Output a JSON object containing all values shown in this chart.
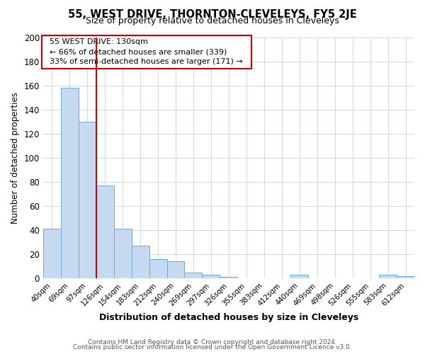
{
  "title": "55, WEST DRIVE, THORNTON-CLEVELEYS, FY5 2JE",
  "subtitle": "Size of property relative to detached houses in Cleveleys",
  "xlabel": "Distribution of detached houses by size in Cleveleys",
  "ylabel": "Number of detached properties",
  "bar_labels": [
    "40sqm",
    "69sqm",
    "97sqm",
    "126sqm",
    "154sqm",
    "183sqm",
    "212sqm",
    "240sqm",
    "269sqm",
    "297sqm",
    "326sqm",
    "355sqm",
    "383sqm",
    "412sqm",
    "440sqm",
    "469sqm",
    "498sqm",
    "526sqm",
    "555sqm",
    "583sqm",
    "612sqm"
  ],
  "bar_values": [
    41,
    158,
    130,
    77,
    41,
    27,
    16,
    14,
    5,
    3,
    1,
    0,
    0,
    0,
    3,
    0,
    0,
    0,
    0,
    3,
    2
  ],
  "bar_color": "#c5d9f0",
  "bar_edge_color": "#6baed6",
  "vline_color": "#cc0000",
  "annotation_title": "55 WEST DRIVE: 130sqm",
  "annotation_line1": "← 66% of detached houses are smaller (339)",
  "annotation_line2": "33% of semi-detached houses are larger (171) →",
  "annotation_box_color": "#ffffff",
  "annotation_box_edge": "#cc0000",
  "ylim": [
    0,
    200
  ],
  "yticks": [
    0,
    20,
    40,
    60,
    80,
    100,
    120,
    140,
    160,
    180,
    200
  ],
  "footnote1": "Contains HM Land Registry data © Crown copyright and database right 2024.",
  "footnote2": "Contains public sector information licensed under the Open Government Licence v3.0.",
  "background_color": "#ffffff",
  "grid_color": "#c8d8ec"
}
